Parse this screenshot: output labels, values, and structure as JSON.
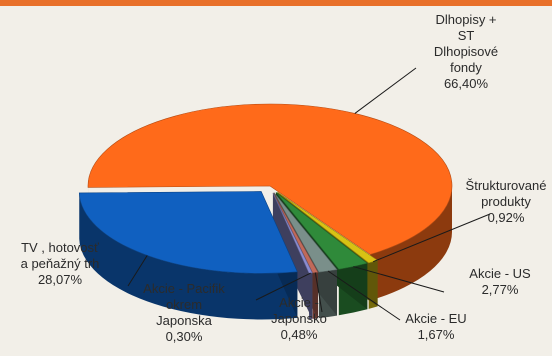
{
  "chart_data": {
    "type": "pie",
    "title": "",
    "slices": [
      {
        "label_lines": [
          "Dlhopisy +",
          "ST",
          "Dlhopisové",
          "fondy"
        ],
        "value_text": "66,40%",
        "value": 66.4,
        "color": "#ff6a1a"
      },
      {
        "label_lines": [
          "Štrukturované",
          "produkty"
        ],
        "value_text": "0,92%",
        "value": 0.92,
        "color": "#d8c214"
      },
      {
        "label_lines": [
          "Akcie - US"
        ],
        "value_text": "2,77%",
        "value": 2.77,
        "color": "#2f8a3a"
      },
      {
        "label_lines": [
          "Akcie - EU"
        ],
        "value_text": "1,67%",
        "value": 1.67,
        "color": "#7a8f8a"
      },
      {
        "label_lines": [
          "Akcie -",
          "Japonsko"
        ],
        "value_text": "0,48%",
        "value": 0.48,
        "color": "#c06a5a"
      },
      {
        "label_lines": [
          "Akcie - Pacifik",
          "okrem",
          "Japonska"
        ],
        "value_text": "0,30%",
        "value": 0.3,
        "color": "#8a8cd0"
      },
      {
        "label_lines": [
          "TV , hotovosť",
          "a peňažný trh"
        ],
        "value_text": "28,07%",
        "value": 28.07,
        "color": "#1060c0"
      }
    ]
  },
  "colors": {
    "accent_bar": "#e8702a",
    "background": "#f2efe8"
  }
}
